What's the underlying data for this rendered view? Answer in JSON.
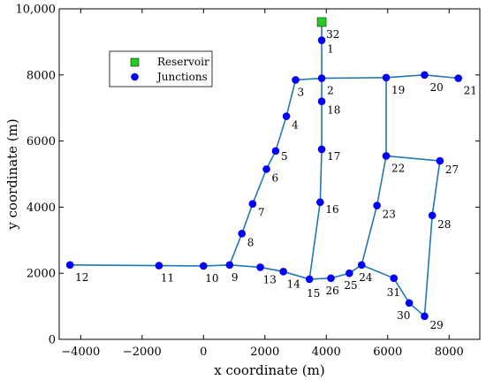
{
  "chart_data": {
    "type": "scatter",
    "xlabel": "x coordinate (m)",
    "ylabel": "y coordinate (m)",
    "xlim": [
      -4700,
      9000
    ],
    "ylim": [
      0,
      10000
    ],
    "x_ticks": [
      -4000,
      -2000,
      0,
      2000,
      4000,
      6000,
      8000
    ],
    "x_tick_labels": [
      "−4000",
      "−2000",
      "0",
      "2000",
      "4000",
      "6000",
      "8000"
    ],
    "y_ticks": [
      0,
      2000,
      4000,
      6000,
      8000,
      10000
    ],
    "y_tick_labels": [
      "0",
      "2000",
      "4000",
      "6000",
      "8000",
      "10,000"
    ],
    "grid": false,
    "legend": {
      "placement": "top-left",
      "entries": [
        {
          "name": "Reservoir",
          "marker": "square",
          "color": "#22cc22"
        },
        {
          "name": "Junctions",
          "marker": "circle",
          "color": "#0000ff"
        }
      ]
    },
    "colors": {
      "pipe": "#1f77b4",
      "junction": "#0000ff",
      "reservoir": "#22cc22"
    },
    "series": [
      {
        "name": "Reservoir",
        "points": [
          {
            "id": "32",
            "x": 3850,
            "y": 9600
          }
        ]
      },
      {
        "name": "Junctions",
        "points": [
          {
            "id": "1",
            "x": 3850,
            "y": 9050
          },
          {
            "id": "2",
            "x": 3850,
            "y": 7900
          },
          {
            "id": "3",
            "x": 3000,
            "y": 7850
          },
          {
            "id": "4",
            "x": 2700,
            "y": 6750
          },
          {
            "id": "5",
            "x": 2350,
            "y": 5700
          },
          {
            "id": "6",
            "x": 2050,
            "y": 5150
          },
          {
            "id": "7",
            "x": 1600,
            "y": 4100
          },
          {
            "id": "8",
            "x": 1250,
            "y": 3200
          },
          {
            "id": "9",
            "x": 850,
            "y": 2250
          },
          {
            "id": "10",
            "x": 0,
            "y": 2220
          },
          {
            "id": "11",
            "x": -1450,
            "y": 2230
          },
          {
            "id": "12",
            "x": -4350,
            "y": 2250
          },
          {
            "id": "13",
            "x": 1850,
            "y": 2180
          },
          {
            "id": "14",
            "x": 2600,
            "y": 2050
          },
          {
            "id": "15",
            "x": 3450,
            "y": 1820
          },
          {
            "id": "16",
            "x": 3800,
            "y": 4150
          },
          {
            "id": "17",
            "x": 3850,
            "y": 5750
          },
          {
            "id": "18",
            "x": 3850,
            "y": 7200
          },
          {
            "id": "19",
            "x": 5950,
            "y": 7920
          },
          {
            "id": "20",
            "x": 7200,
            "y": 8000
          },
          {
            "id": "21",
            "x": 8300,
            "y": 7900
          },
          {
            "id": "22",
            "x": 5950,
            "y": 5550
          },
          {
            "id": "23",
            "x": 5650,
            "y": 4050
          },
          {
            "id": "24",
            "x": 5150,
            "y": 2250
          },
          {
            "id": "25",
            "x": 4750,
            "y": 2000
          },
          {
            "id": "26",
            "x": 4150,
            "y": 1850
          },
          {
            "id": "27",
            "x": 7700,
            "y": 5400
          },
          {
            "id": "28",
            "x": 7450,
            "y": 3750
          },
          {
            "id": "29",
            "x": 7200,
            "y": 700
          },
          {
            "id": "30",
            "x": 6700,
            "y": 1100
          },
          {
            "id": "31",
            "x": 6200,
            "y": 1850
          }
        ]
      }
    ],
    "links": [
      [
        "32",
        "1"
      ],
      [
        "1",
        "2"
      ],
      [
        "2",
        "3"
      ],
      [
        "2",
        "18"
      ],
      [
        "2",
        "19"
      ],
      [
        "19",
        "20"
      ],
      [
        "20",
        "21"
      ],
      [
        "3",
        "4"
      ],
      [
        "4",
        "5"
      ],
      [
        "5",
        "6"
      ],
      [
        "6",
        "7"
      ],
      [
        "7",
        "8"
      ],
      [
        "8",
        "9"
      ],
      [
        "9",
        "10"
      ],
      [
        "10",
        "11"
      ],
      [
        "11",
        "12"
      ],
      [
        "9",
        "13"
      ],
      [
        "13",
        "14"
      ],
      [
        "14",
        "15"
      ],
      [
        "15",
        "16"
      ],
      [
        "16",
        "17"
      ],
      [
        "17",
        "18"
      ],
      [
        "15",
        "26"
      ],
      [
        "26",
        "25"
      ],
      [
        "25",
        "24"
      ],
      [
        "24",
        "23"
      ],
      [
        "23",
        "22"
      ],
      [
        "22",
        "19"
      ],
      [
        "22",
        "27"
      ],
      [
        "27",
        "28"
      ],
      [
        "28",
        "29"
      ],
      [
        "29",
        "30"
      ],
      [
        "30",
        "31"
      ],
      [
        "31",
        "24"
      ]
    ]
  }
}
